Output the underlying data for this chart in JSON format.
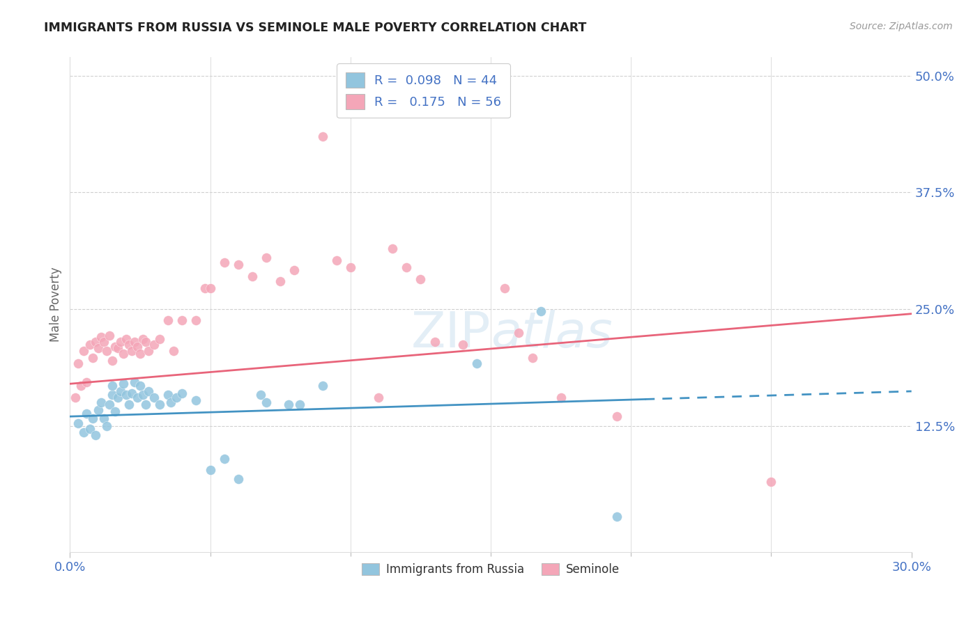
{
  "title": "IMMIGRANTS FROM RUSSIA VS SEMINOLE MALE POVERTY CORRELATION CHART",
  "source": "Source: ZipAtlas.com",
  "ylabel": "Male Poverty",
  "xlim": [
    0.0,
    0.3
  ],
  "ylim": [
    -0.01,
    0.52
  ],
  "ytick_labels": [
    "12.5%",
    "25.0%",
    "37.5%",
    "50.0%"
  ],
  "ytick_values": [
    0.125,
    0.25,
    0.375,
    0.5
  ],
  "xtick_labels": [
    "0.0%",
    "30.0%"
  ],
  "xtick_values": [
    0.0,
    0.3
  ],
  "legend_label1": "Immigrants from Russia",
  "legend_label2": "Seminole",
  "blue_color": "#92c5de",
  "pink_color": "#f4a6b8",
  "blue_line_color": "#4393c3",
  "pink_line_color": "#e8647a",
  "blue_scatter": [
    [
      0.003,
      0.128
    ],
    [
      0.005,
      0.118
    ],
    [
      0.006,
      0.138
    ],
    [
      0.007,
      0.122
    ],
    [
      0.008,
      0.133
    ],
    [
      0.009,
      0.115
    ],
    [
      0.01,
      0.142
    ],
    [
      0.011,
      0.15
    ],
    [
      0.012,
      0.133
    ],
    [
      0.013,
      0.125
    ],
    [
      0.014,
      0.148
    ],
    [
      0.015,
      0.158
    ],
    [
      0.015,
      0.168
    ],
    [
      0.016,
      0.14
    ],
    [
      0.017,
      0.155
    ],
    [
      0.018,
      0.162
    ],
    [
      0.019,
      0.17
    ],
    [
      0.02,
      0.158
    ],
    [
      0.021,
      0.148
    ],
    [
      0.022,
      0.16
    ],
    [
      0.023,
      0.172
    ],
    [
      0.024,
      0.155
    ],
    [
      0.025,
      0.168
    ],
    [
      0.026,
      0.158
    ],
    [
      0.027,
      0.148
    ],
    [
      0.028,
      0.162
    ],
    [
      0.03,
      0.155
    ],
    [
      0.032,
      0.148
    ],
    [
      0.035,
      0.158
    ],
    [
      0.036,
      0.15
    ],
    [
      0.038,
      0.155
    ],
    [
      0.04,
      0.16
    ],
    [
      0.045,
      0.152
    ],
    [
      0.05,
      0.078
    ],
    [
      0.055,
      0.09
    ],
    [
      0.06,
      0.068
    ],
    [
      0.068,
      0.158
    ],
    [
      0.07,
      0.15
    ],
    [
      0.078,
      0.148
    ],
    [
      0.082,
      0.148
    ],
    [
      0.09,
      0.168
    ],
    [
      0.145,
      0.192
    ],
    [
      0.168,
      0.248
    ],
    [
      0.195,
      0.028
    ]
  ],
  "pink_scatter": [
    [
      0.002,
      0.155
    ],
    [
      0.003,
      0.192
    ],
    [
      0.004,
      0.168
    ],
    [
      0.005,
      0.205
    ],
    [
      0.006,
      0.172
    ],
    [
      0.007,
      0.212
    ],
    [
      0.008,
      0.198
    ],
    [
      0.009,
      0.215
    ],
    [
      0.01,
      0.208
    ],
    [
      0.011,
      0.22
    ],
    [
      0.012,
      0.215
    ],
    [
      0.013,
      0.205
    ],
    [
      0.014,
      0.222
    ],
    [
      0.015,
      0.195
    ],
    [
      0.016,
      0.21
    ],
    [
      0.017,
      0.208
    ],
    [
      0.018,
      0.215
    ],
    [
      0.019,
      0.202
    ],
    [
      0.02,
      0.218
    ],
    [
      0.021,
      0.212
    ],
    [
      0.022,
      0.205
    ],
    [
      0.023,
      0.215
    ],
    [
      0.024,
      0.21
    ],
    [
      0.025,
      0.202
    ],
    [
      0.026,
      0.218
    ],
    [
      0.027,
      0.215
    ],
    [
      0.028,
      0.205
    ],
    [
      0.03,
      0.212
    ],
    [
      0.032,
      0.218
    ],
    [
      0.035,
      0.238
    ],
    [
      0.037,
      0.205
    ],
    [
      0.04,
      0.238
    ],
    [
      0.045,
      0.238
    ],
    [
      0.048,
      0.272
    ],
    [
      0.05,
      0.272
    ],
    [
      0.055,
      0.3
    ],
    [
      0.06,
      0.298
    ],
    [
      0.065,
      0.285
    ],
    [
      0.07,
      0.305
    ],
    [
      0.075,
      0.28
    ],
    [
      0.08,
      0.292
    ],
    [
      0.09,
      0.435
    ],
    [
      0.095,
      0.302
    ],
    [
      0.1,
      0.295
    ],
    [
      0.11,
      0.155
    ],
    [
      0.115,
      0.315
    ],
    [
      0.12,
      0.295
    ],
    [
      0.125,
      0.282
    ],
    [
      0.13,
      0.215
    ],
    [
      0.14,
      0.212
    ],
    [
      0.155,
      0.272
    ],
    [
      0.16,
      0.225
    ],
    [
      0.165,
      0.198
    ],
    [
      0.175,
      0.155
    ],
    [
      0.195,
      0.135
    ],
    [
      0.25,
      0.065
    ]
  ],
  "blue_trend_x0": 0.0,
  "blue_trend_x_solid_end": 0.205,
  "blue_trend_x1": 0.3,
  "blue_trend_y0": 0.135,
  "blue_trend_y1": 0.162,
  "pink_trend_x0": 0.0,
  "pink_trend_x1": 0.3,
  "pink_trend_y0": 0.17,
  "pink_trend_y1": 0.245,
  "watermark": "ZIPatlas",
  "watermark_zip_color": "#c8dff0",
  "watermark_atlas_color": "#c8dff0"
}
